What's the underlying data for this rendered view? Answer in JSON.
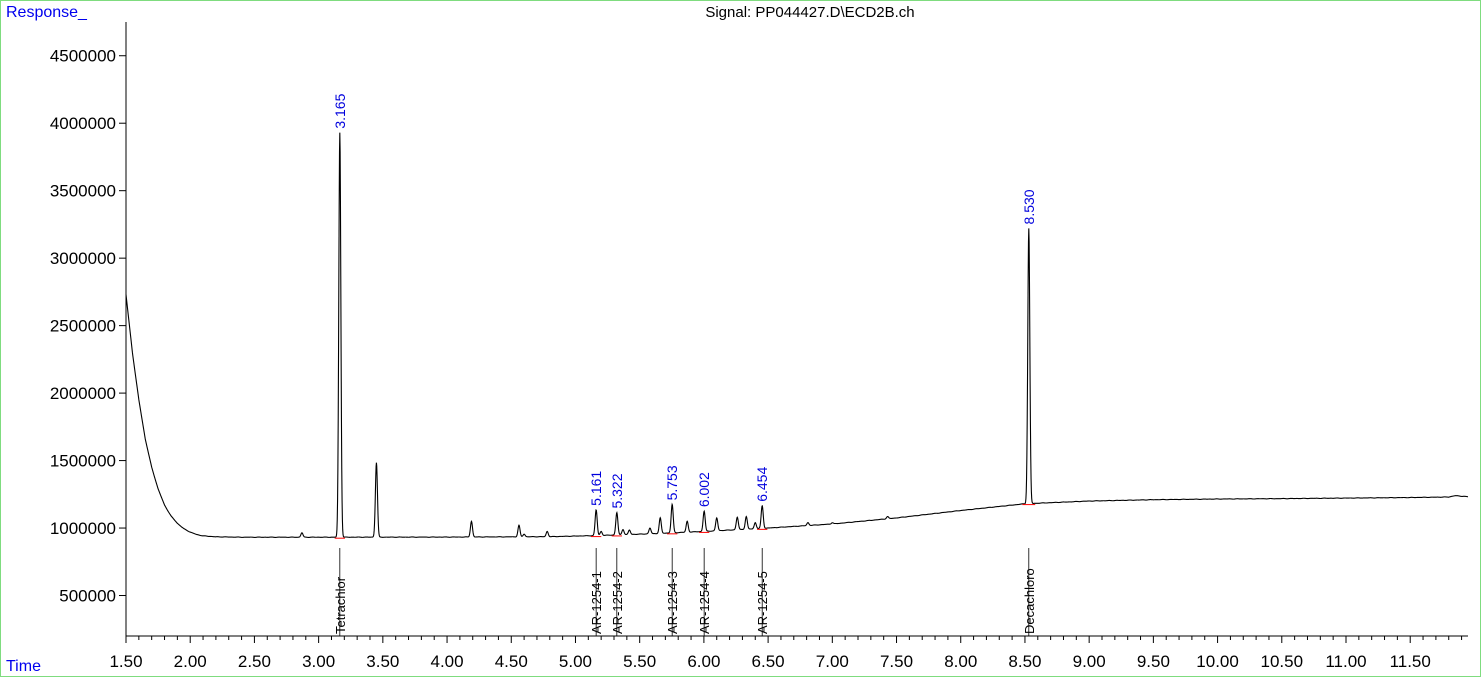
{
  "chart_data": {
    "type": "line",
    "title": "Signal: PP044427.D\\ECD2B.ch",
    "ylabel": "Response_",
    "xlabel": "Time",
    "xlim": [
      1.5,
      11.95
    ],
    "ylim": [
      200000,
      4750000
    ],
    "x_ticks": [
      1.5,
      2.0,
      2.5,
      3.0,
      3.5,
      4.0,
      4.5,
      5.0,
      5.5,
      6.0,
      6.5,
      7.0,
      7.5,
      8.0,
      8.5,
      9.0,
      9.5,
      10.0,
      10.5,
      11.0,
      11.5
    ],
    "x_tick_labels": [
      "1.50",
      "2.00",
      "2.50",
      "3.00",
      "3.50",
      "4.00",
      "4.50",
      "5.00",
      "5.50",
      "6.00",
      "6.50",
      "7.00",
      "7.50",
      "8.00",
      "8.50",
      "9.00",
      "9.50",
      "10.00",
      "10.50",
      "11.00",
      "11.50"
    ],
    "y_ticks": [
      500000,
      1000000,
      1500000,
      2000000,
      2500000,
      3000000,
      3500000,
      4000000,
      4500000
    ],
    "y_tick_labels": [
      "500000",
      "1000000",
      "1500000",
      "2000000",
      "2500000",
      "3000000",
      "3500000",
      "4000000",
      "4500000"
    ],
    "grid": false,
    "baseline": [
      [
        1.5,
        2730000
      ],
      [
        1.55,
        2300000
      ],
      [
        1.6,
        1950000
      ],
      [
        1.65,
        1660000
      ],
      [
        1.7,
        1450000
      ],
      [
        1.75,
        1290000
      ],
      [
        1.8,
        1170000
      ],
      [
        1.85,
        1090000
      ],
      [
        1.9,
        1035000
      ],
      [
        1.95,
        995000
      ],
      [
        2.0,
        970000
      ],
      [
        2.05,
        952000
      ],
      [
        2.1,
        942000
      ],
      [
        2.2,
        935000
      ],
      [
        2.4,
        932000
      ],
      [
        3.0,
        932000
      ],
      [
        4.0,
        933000
      ],
      [
        4.8,
        936000
      ],
      [
        5.2,
        945000
      ],
      [
        5.6,
        958000
      ],
      [
        6.0,
        975000
      ],
      [
        6.5,
        1000000
      ],
      [
        7.0,
        1030000
      ],
      [
        7.5,
        1075000
      ],
      [
        8.0,
        1130000
      ],
      [
        8.5,
        1180000
      ],
      [
        9.0,
        1200000
      ],
      [
        9.5,
        1210000
      ],
      [
        10.0,
        1215000
      ],
      [
        10.5,
        1218000
      ],
      [
        11.0,
        1222000
      ],
      [
        11.5,
        1226000
      ],
      [
        11.8,
        1230000
      ],
      [
        11.85,
        1240000
      ],
      [
        11.95,
        1232000
      ]
    ],
    "peaks": [
      {
        "rt": 3.165,
        "height": 3930000
      },
      {
        "rt": 3.45,
        "height": 1485000
      },
      {
        "rt": 2.87,
        "height": 965000
      },
      {
        "rt": 4.19,
        "height": 1050000
      },
      {
        "rt": 4.56,
        "height": 1020000
      },
      {
        "rt": 4.6,
        "height": 955000
      },
      {
        "rt": 4.78,
        "height": 975000
      },
      {
        "rt": 5.161,
        "height": 1135000
      },
      {
        "rt": 5.2,
        "height": 975000
      },
      {
        "rt": 5.322,
        "height": 1115000
      },
      {
        "rt": 5.37,
        "height": 990000
      },
      {
        "rt": 5.42,
        "height": 985000
      },
      {
        "rt": 5.58,
        "height": 1000000
      },
      {
        "rt": 5.66,
        "height": 1075000
      },
      {
        "rt": 5.753,
        "height": 1175000
      },
      {
        "rt": 5.87,
        "height": 1050000
      },
      {
        "rt": 6.002,
        "height": 1125000
      },
      {
        "rt": 6.1,
        "height": 1075000
      },
      {
        "rt": 6.26,
        "height": 1080000
      },
      {
        "rt": 6.33,
        "height": 1085000
      },
      {
        "rt": 6.4,
        "height": 1040000
      },
      {
        "rt": 6.454,
        "height": 1165000
      },
      {
        "rt": 6.81,
        "height": 1040000
      },
      {
        "rt": 7.0,
        "height": 1040000
      },
      {
        "rt": 7.43,
        "height": 1085000
      },
      {
        "rt": 8.53,
        "height": 3220000
      }
    ],
    "peak_labels": [
      {
        "rt": 3.165,
        "label": "3.165"
      },
      {
        "rt": 5.161,
        "label": "5.161"
      },
      {
        "rt": 5.322,
        "label": "5.322"
      },
      {
        "rt": 5.753,
        "label": "5.753"
      },
      {
        "rt": 6.002,
        "label": "6.002"
      },
      {
        "rt": 6.454,
        "label": "6.454"
      },
      {
        "rt": 8.53,
        "label": "8.530"
      }
    ],
    "compounds": [
      {
        "rt": 3.165,
        "name": "Tetrachlor"
      },
      {
        "rt": 5.161,
        "name": "AR-1254-1"
      },
      {
        "rt": 5.322,
        "name": "AR-1254-2"
      },
      {
        "rt": 5.753,
        "name": "AR-1254-3"
      },
      {
        "rt": 6.002,
        "name": "AR-1254-4"
      },
      {
        "rt": 6.454,
        "name": "AR-1254-5"
      },
      {
        "rt": 8.53,
        "name": "Decachloro"
      }
    ],
    "colors": {
      "trace": "#000000",
      "peak_label": "#0000dd",
      "corner_text": "#0000ee",
      "integration_mark": "#ff0000",
      "frame": "#7fdc7f"
    }
  }
}
